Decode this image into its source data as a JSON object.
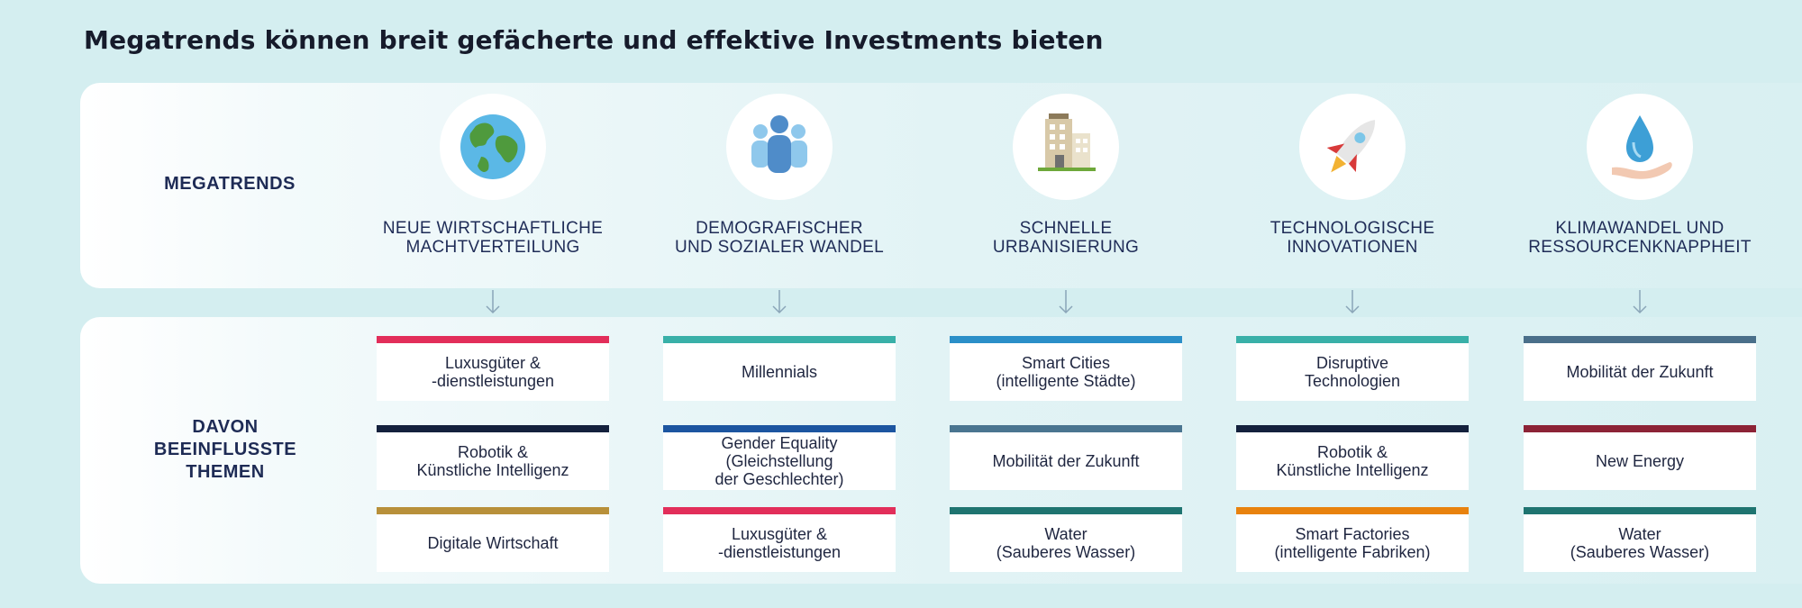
{
  "title": "Megatrends können breit gefächerte und effektive Investments bieten",
  "row_labels": {
    "megatrends": "MEGATRENDS",
    "themes": "DAVON\nBEEINFLUSSTE\nTHEMEN"
  },
  "columns": [
    {
      "icon": "globe-icon",
      "megatrend": "NEUE WIRTSCHAFTLICHE\nMACHTVERTEILUNG",
      "themes": [
        {
          "label": "Luxusgüter &\n-dienstleistungen",
          "color": "#e22e5a"
        },
        {
          "label": "Robotik &\nKünstliche Intelligenz",
          "color": "#14213d"
        },
        {
          "label": "Digitale Wirtschaft",
          "color": "#b8903a"
        }
      ]
    },
    {
      "icon": "people-group-icon",
      "megatrend": "DEMOGRAFISCHER\nUND SOZIALER WANDEL",
      "themes": [
        {
          "label": "Millennials",
          "color": "#39b0a8"
        },
        {
          "label": "Gender Equality\n(Gleichstellung\nder Geschlechter)",
          "color": "#1c55a0"
        },
        {
          "label": "Luxusgüter &\n-dienstleistungen",
          "color": "#e22e5a"
        }
      ]
    },
    {
      "icon": "building-icon",
      "megatrend": "SCHNELLE\nURBANISIERUNG",
      "themes": [
        {
          "label": "Smart Cities\n(intelligente Städte)",
          "color": "#2b8fc8"
        },
        {
          "label": "Mobilität der Zukunft",
          "color": "#4a7590"
        },
        {
          "label": "Water\n(Sauberes Wasser)",
          "color": "#1f7470"
        }
      ]
    },
    {
      "icon": "rocket-icon",
      "megatrend": "TECHNOLOGISCHE\nINNOVATIONEN",
      "themes": [
        {
          "label": "Disruptive\nTechnologien",
          "color": "#39b0a8"
        },
        {
          "label": "Robotik &\nKünstliche Intelligenz",
          "color": "#14213d"
        },
        {
          "label": "Smart Factories\n(intelligente Fabriken)",
          "color": "#e8820e"
        }
      ]
    },
    {
      "icon": "water-drop-hand-icon",
      "megatrend": "KLIMAWANDEL UND\nRESSOURCENKNAPPHEIT",
      "themes": [
        {
          "label": "Mobilität der Zukunft",
          "color": "#4a6f8a"
        },
        {
          "label": "New Energy",
          "color": "#8c2336"
        },
        {
          "label": "Water\n(Sauberes Wasser)",
          "color": "#1f7470"
        }
      ]
    }
  ]
}
